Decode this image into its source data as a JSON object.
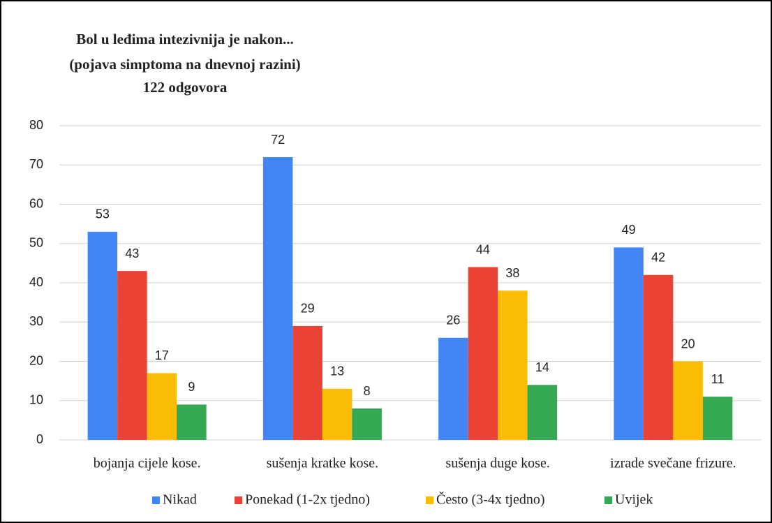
{
  "chart_data": {
    "type": "bar",
    "title": "Bol u leđima intezivnija je nakon...",
    "subtitle": "(pojava simptoma na dnevnoj razini)",
    "note": "122 odgovora",
    "categories": [
      "bojanja cijele kose.",
      "sušenja kratke kose.",
      "sušenja duge kose.",
      "izrade svečane frizure."
    ],
    "series": [
      {
        "name": "Nikad",
        "color": "#4285f4",
        "values": [
          53,
          72,
          26,
          49
        ]
      },
      {
        "name": "Ponekad (1-2x tjedno)",
        "color": "#ea4335",
        "values": [
          43,
          29,
          44,
          42
        ]
      },
      {
        "name": "Često (3-4x tjedno)",
        "color": "#fbbc04",
        "values": [
          17,
          13,
          38,
          20
        ]
      },
      {
        "name": "Uvijek",
        "color": "#34a853",
        "values": [
          9,
          8,
          14,
          11
        ]
      }
    ],
    "ylim": [
      0,
      80
    ],
    "yticks": [
      0,
      10,
      20,
      30,
      40,
      50,
      60,
      70,
      80
    ],
    "grid": true,
    "legend": "bottom"
  }
}
